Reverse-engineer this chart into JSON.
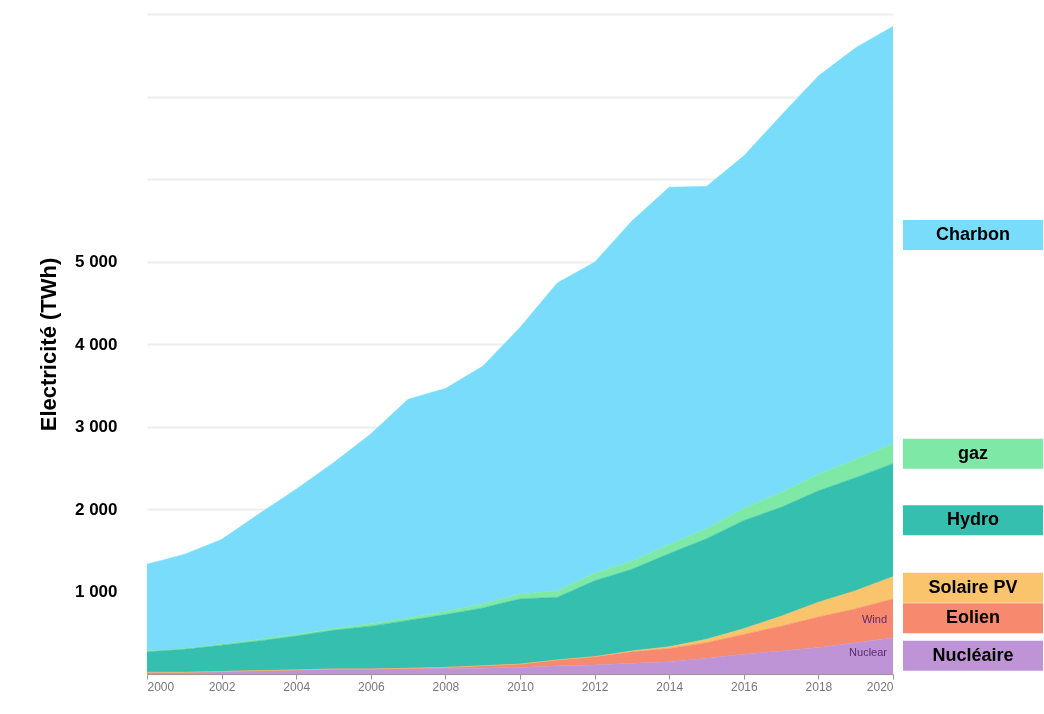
{
  "chart_data": {
    "type": "area",
    "stacked": true,
    "ylabel": "Electricité (TWh)",
    "x": [
      2000,
      2001,
      2002,
      2003,
      2004,
      2005,
      2006,
      2007,
      2008,
      2009,
      2010,
      2011,
      2012,
      2013,
      2014,
      2015,
      2016,
      2017,
      2018,
      2019,
      2020
    ],
    "xlim": [
      2000,
      2020
    ],
    "xticks": [
      2000,
      2002,
      2004,
      2006,
      2008,
      2010,
      2012,
      2014,
      2016,
      2018,
      2020
    ],
    "ylim": [
      0,
      8000
    ],
    "yticks": [
      {
        "value": 0,
        "label": null
      },
      {
        "value": 1000,
        "label": "1 000"
      },
      {
        "value": 2000,
        "label": "2 000"
      },
      {
        "value": 3000,
        "label": "3 000"
      },
      {
        "value": 4000,
        "label": "4 000"
      },
      {
        "value": 5000,
        "label": "5 000"
      },
      {
        "value": 6000,
        "label": null
      },
      {
        "value": 7000,
        "label": null
      },
      {
        "value": 8000,
        "label": null
      }
    ],
    "grid": "y",
    "legend": "right",
    "series": [
      {
        "name": "Nucléaire",
        "color": "#bf94d6",
        "values": [
          20,
          20,
          30,
          40,
          50,
          60,
          60,
          60,
          70,
          70,
          80,
          100,
          110,
          130,
          150,
          190,
          240,
          280,
          320,
          380,
          440
        ]
      },
      {
        "name": "Eolien",
        "color": "#f7896f",
        "values": [
          0,
          0,
          0,
          0,
          0,
          0,
          0,
          10,
          10,
          30,
          40,
          70,
          100,
          140,
          160,
          190,
          240,
          300,
          370,
          410,
          470
        ]
      },
      {
        "name": "Solaire PV",
        "color": "#f9c46b",
        "values": [
          0,
          0,
          0,
          0,
          0,
          0,
          0,
          0,
          0,
          0,
          0,
          0,
          0,
          10,
          20,
          40,
          70,
          120,
          180,
          220,
          270
        ]
      },
      {
        "name": "Hydro",
        "color": "#35bfae",
        "values": [
          250,
          280,
          320,
          360,
          410,
          470,
          520,
          580,
          640,
          700,
          790,
          760,
          920,
          990,
          1130,
          1220,
          1310,
          1320,
          1350,
          1370,
          1370
        ]
      },
      {
        "name": "gaz",
        "color": "#7ee8a6",
        "values": [
          10,
          10,
          10,
          20,
          20,
          20,
          30,
          30,
          40,
          50,
          60,
          80,
          90,
          100,
          110,
          120,
          150,
          180,
          200,
          220,
          240
        ]
      },
      {
        "name": "Charbon",
        "color": "#79dcfa",
        "values": [
          1050,
          1140,
          1270,
          1520,
          1760,
          2010,
          2300,
          2650,
          2700,
          2880,
          3230,
          3730,
          3770,
          4120,
          4330,
          4150,
          4270,
          4570,
          4830,
          4990,
          5060
        ]
      }
    ],
    "annotations": [
      "Wind",
      "Nuclear"
    ]
  }
}
